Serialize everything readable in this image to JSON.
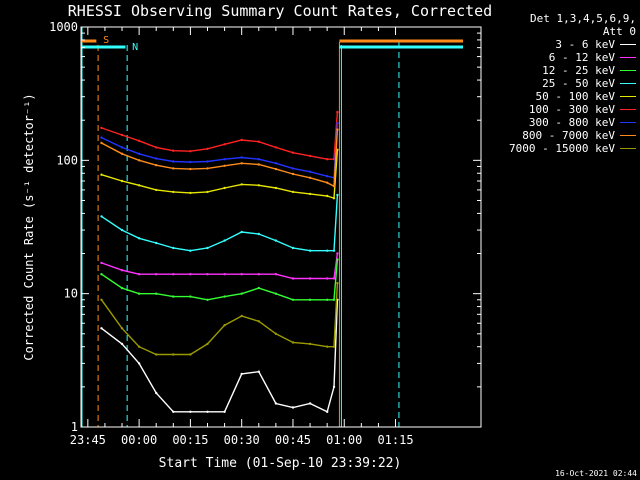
{
  "chart_data": {
    "type": "line",
    "title": "RHESSI Observing Summary Count Rates, Corrected",
    "xlabel": "Start Time (01-Sep-10 23:39:22)",
    "ylabel": "Corrected Count Rate (s⁻¹ detector⁻¹)",
    "yscale": "log",
    "ylim": [
      1,
      1000
    ],
    "yticks": [
      "1",
      "10",
      "100",
      "1000"
    ],
    "xlim_minutes": [
      -17,
      100
    ],
    "xticks": [
      {
        "label": "23:45",
        "minutes": -15
      },
      {
        "label": "00:00",
        "minutes": 0
      },
      {
        "label": "00:15",
        "minutes": 15
      },
      {
        "label": "00:30",
        "minutes": 30
      },
      {
        "label": "00:45",
        "minutes": 45
      },
      {
        "label": "01:00",
        "minutes": 60
      },
      {
        "label": "01:15",
        "minutes": 75
      }
    ],
    "x_minutes": [
      -11,
      -5,
      0,
      5,
      10,
      15,
      20,
      25,
      30,
      35,
      40,
      45,
      50,
      55,
      57,
      58
    ],
    "series": [
      {
        "name": "3 - 6 keV",
        "color": "#ffffff",
        "values": [
          5.5,
          4.2,
          3.0,
          1.8,
          1.3,
          1.3,
          1.3,
          1.3,
          2.5,
          2.6,
          1.5,
          1.4,
          1.5,
          1.3,
          2.0,
          9.0
        ]
      },
      {
        "name": "6 - 12 keV",
        "color": "#ff33ff",
        "values": [
          17,
          15,
          14,
          14,
          14,
          14,
          14,
          14,
          14,
          14,
          14,
          13,
          13,
          13,
          13,
          20
        ]
      },
      {
        "name": "12 - 25 keV",
        "color": "#33ff33",
        "values": [
          14,
          11,
          10,
          10,
          9.5,
          9.5,
          9,
          9.5,
          10,
          11,
          10,
          9,
          9,
          9,
          9,
          18
        ]
      },
      {
        "name": "25 - 50 keV",
        "color": "#33ffff",
        "values": [
          38,
          30,
          26,
          24,
          22,
          21,
          22,
          25,
          29,
          28,
          25,
          22,
          21,
          21,
          21,
          55
        ]
      },
      {
        "name": "50 - 100 keV",
        "color": "#e6e600",
        "values": [
          78,
          70,
          65,
          60,
          58,
          57,
          58,
          62,
          66,
          65,
          62,
          58,
          56,
          54,
          52,
          120
        ]
      },
      {
        "name": "100 - 300 keV",
        "color": "#ff2222",
        "values": [
          175,
          155,
          140,
          125,
          118,
          117,
          122,
          132,
          142,
          138,
          125,
          114,
          108,
          102,
          102,
          230
        ]
      },
      {
        "name": "300 - 800 keV",
        "color": "#2233ff",
        "values": [
          148,
          125,
          112,
          103,
          98,
          97,
          98,
          102,
          105,
          102,
          95,
          87,
          82,
          76,
          74,
          190
        ]
      },
      {
        "name": "800 - 7000 keV",
        "color": "#ff8c1a",
        "values": [
          135,
          112,
          100,
          92,
          87,
          86,
          87,
          91,
          95,
          93,
          86,
          79,
          74,
          68,
          64,
          170
        ]
      },
      {
        "name": "7000 - 15000 keV",
        "color": "#9a9a00",
        "values": [
          9,
          5.5,
          4.0,
          3.5,
          3.5,
          3.5,
          4.2,
          5.8,
          6.8,
          6.2,
          5.0,
          4.3,
          4.2,
          4.0,
          4.0,
          12
        ]
      }
    ],
    "annotations": [
      {
        "label": "S",
        "color": "#ff8c1a",
        "minutes": -12
      },
      {
        "label": "N",
        "color": "#33ffff",
        "minutes": -3.5
      }
    ],
    "legend_position": "right"
  },
  "legend": {
    "header_line1": "Det 1,3,4,5,6,9,",
    "header_line2": "Att 0"
  },
  "footer": {
    "timestamp": "16-Oct-2021 02:44"
  }
}
